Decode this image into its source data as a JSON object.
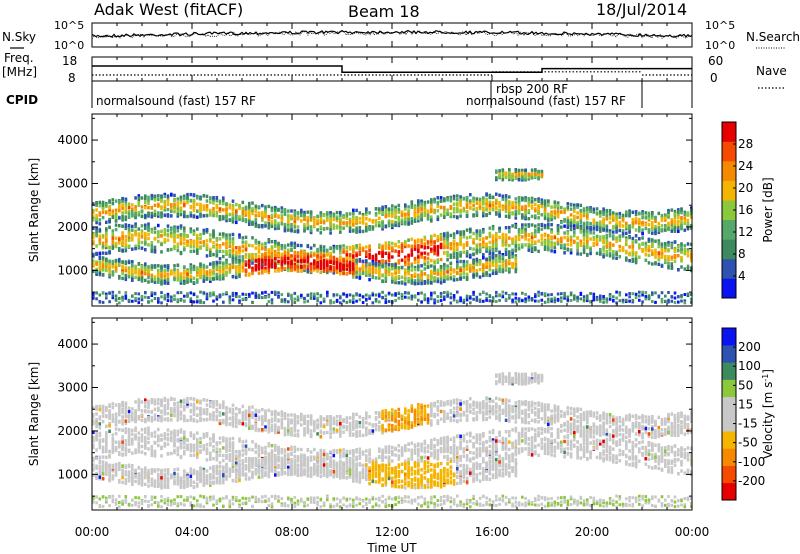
{
  "header": {
    "title": "Adak West (fitACF)",
    "beam": "Beam 18",
    "date": "18/Jul/2014"
  },
  "noise_panel": {
    "left_label": "N.Sky",
    "right_label": "N.Search",
    "tick_top": "10^5",
    "tick_bottom": "10^0"
  },
  "freq_panel": {
    "left_label_1": "Freq.",
    "left_label_2": "[MHz]",
    "left_ticks": [
      "18",
      "8"
    ],
    "right_label": "Nave",
    "right_ticks": [
      "60",
      "0"
    ]
  },
  "cpid_panel": {
    "label": "CPID",
    "segments": [
      {
        "text": "normalsound (fast) 157 RF",
        "row": 1
      },
      {
        "text": "rbsp 200 RF",
        "row": 0
      },
      {
        "text": "normalsound (fast) 157 RF",
        "row": 1
      }
    ]
  },
  "x_axis": {
    "label": "Time UT",
    "ticks": [
      "00:00",
      "04:00",
      "08:00",
      "12:00",
      "16:00",
      "20:00",
      "00:00"
    ],
    "range_hours": [
      0,
      24
    ]
  },
  "colors": {
    "power": [
      "#0a14f0",
      "#2d52b0",
      "#3e8a5f",
      "#55a86a",
      "#8cc83c",
      "#f5b400",
      "#f58a00",
      "#f54a00",
      "#e60000"
    ],
    "velocity": [
      "#e60000",
      "#f54a00",
      "#f58a00",
      "#f5b400",
      "#c8c8c8",
      "#c8c8c8",
      "#8cc83c",
      "#3e8a5f",
      "#2d52b0",
      "#0a14f0"
    ]
  },
  "chart_data": [
    {
      "type": "heatmap",
      "panel": "power",
      "ylabel": "Slant Range [km]",
      "ylim": [
        180,
        4600
      ],
      "yticks": [
        "1000",
        "2000",
        "3000",
        "4000"
      ],
      "colorbar_label": "Power [dB]",
      "colorbar_ticks": [
        "28",
        "24",
        "20",
        "16",
        "12",
        "8",
        "4"
      ]
    },
    {
      "type": "heatmap",
      "panel": "velocity",
      "ylabel": "Slant Range [km]",
      "ylim": [
        180,
        4600
      ],
      "yticks": [
        "1000",
        "2000",
        "3000",
        "4000"
      ],
      "colorbar_label": "Velocity [m s",
      "colorbar_label_sup": "-1",
      "colorbar_label_close": "]",
      "colorbar_ticks": [
        "200",
        "100",
        "50",
        "15",
        "-15",
        "-50",
        "-100",
        "-200"
      ]
    }
  ]
}
